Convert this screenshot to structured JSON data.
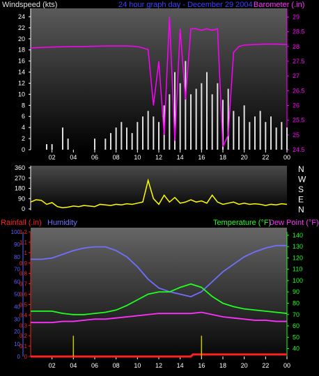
{
  "colors": {
    "windspeed": "#e0e0e0",
    "gust": "#ffffff",
    "wind_avg": "#30ff30",
    "barometer": "#ff00ff",
    "direction": "#ffff00",
    "rainfall": "#ff2020",
    "humidity": "#7070ff",
    "temperature": "#20ff20",
    "dewpoint": "#ff30ff",
    "axis_left": "#ffffff",
    "axis_humidity": "#6060ff",
    "axis_green": "#20ff20"
  },
  "labels": {
    "windspeed": "Windspeed (kts)",
    "graph_title": "24 hour graph day - December 29 2004",
    "barometer": "Barometer (.in)",
    "rainfall": "Rainfall (.in)",
    "humidity": "Humidity",
    "temperature": "Temperature (°F)",
    "dewpoint": "Dew Point (°F)"
  },
  "chart_data": [
    {
      "type": "line",
      "title": "24 hour graph day - December 29 2004",
      "xlabel": "",
      "x_ticks": [
        "02",
        "04",
        "06",
        "08",
        "10",
        "12",
        "14",
        "16",
        "18",
        "20",
        "22",
        "00"
      ],
      "left_axis": {
        "label": "Windspeed (kts)",
        "ticks": [
          "0",
          "2",
          "4",
          "6",
          "8",
          "10",
          "12",
          "14",
          "16",
          "18",
          "20",
          "22",
          "24"
        ],
        "range": [
          0,
          25
        ]
      },
      "right_axis": {
        "label": "Barometer (.in)",
        "ticks": [
          "24.5",
          "25",
          "25.5",
          "26",
          "26.5",
          "27",
          "27.5",
          "28",
          "28.5",
          "29"
        ],
        "range": [
          24.5,
          29.2
        ]
      },
      "series": [
        {
          "name": "Windspeed (kts)",
          "axis": "left",
          "style": "bars",
          "x": [
            0,
            0.5,
            1,
            1.5,
            2,
            2.5,
            3,
            3.5,
            4,
            4.5,
            5,
            5.5,
            6,
            6.5,
            7,
            7.5,
            8,
            8.5,
            9,
            9.5,
            10,
            10.5,
            11,
            11.5,
            12,
            12.5,
            13,
            13.5,
            14,
            14.5,
            15,
            15.5,
            16,
            16.5,
            17,
            17.5,
            18,
            18.5,
            19,
            19.5,
            20,
            20.5,
            21,
            21.5,
            22,
            22.5,
            23,
            23.5,
            24
          ],
          "values": [
            0,
            0,
            0,
            1,
            1,
            0,
            4,
            2,
            0,
            0,
            0,
            0,
            2,
            0,
            2,
            3,
            4,
            5,
            4,
            3,
            5,
            6,
            7,
            6,
            5,
            8,
            10,
            14,
            12,
            16,
            10,
            11,
            12,
            14,
            10,
            12,
            9,
            11,
            7,
            6,
            8,
            5,
            6,
            7,
            5,
            6,
            4,
            5,
            4
          ]
        },
        {
          "name": "Barometer (.in)",
          "axis": "right",
          "x": [
            0,
            1,
            2,
            3,
            4,
            5,
            6,
            7,
            8,
            9,
            10,
            11,
            11.5,
            12,
            12.5,
            13,
            13.5,
            14,
            14.5,
            15,
            15.5,
            16,
            16.5,
            17,
            17.5,
            18,
            18.5,
            19,
            19.5,
            20,
            21,
            22,
            23,
            24
          ],
          "values": [
            27.95,
            27.97,
            27.98,
            27.99,
            28.0,
            28.0,
            28.01,
            28.02,
            28.02,
            28.02,
            28.0,
            27.9,
            26.0,
            27.5,
            25.0,
            29.0,
            24.8,
            28.6,
            26.2,
            28.6,
            28.6,
            28.55,
            28.6,
            28.55,
            28.6,
            24.6,
            25.0,
            27.8,
            28.0,
            28.05,
            28.07,
            28.08,
            28.08,
            28.07
          ]
        }
      ]
    },
    {
      "type": "line",
      "title": "",
      "left_axis": {
        "label": "",
        "ticks": [
          "0",
          "90",
          "180",
          "270",
          "360"
        ],
        "range": [
          0,
          360
        ]
      },
      "right_axis": {
        "label": "",
        "ticks": [
          "N",
          "W",
          "S",
          "E",
          "N"
        ]
      },
      "series": [
        {
          "name": "Wind direction",
          "axis": "left",
          "x": [
            0,
            0.5,
            1,
            1.5,
            2,
            2.5,
            3,
            3.5,
            4,
            4.5,
            5,
            5.5,
            6,
            6.5,
            7,
            7.5,
            8,
            8.5,
            9,
            9.5,
            10,
            10.5,
            11,
            11.5,
            12,
            12.5,
            13,
            13.5,
            14,
            14.5,
            15,
            15.5,
            16,
            16.5,
            17,
            17.5,
            18,
            18.5,
            19,
            19.5,
            20,
            20.5,
            21,
            21.5,
            22,
            22.5,
            23,
            23.5,
            24
          ],
          "values": [
            60,
            80,
            75,
            40,
            55,
            20,
            10,
            15,
            25,
            20,
            30,
            25,
            20,
            40,
            35,
            30,
            40,
            35,
            45,
            40,
            50,
            60,
            250,
            90,
            40,
            120,
            60,
            100,
            50,
            60,
            80,
            60,
            70,
            50,
            120,
            60,
            40,
            50,
            60,
            40,
            50,
            40,
            45,
            40,
            30,
            40,
            35,
            45,
            40
          ]
        }
      ]
    },
    {
      "type": "line",
      "title": "",
      "x_ticks": [
        "02",
        "04",
        "06",
        "08",
        "10",
        "12",
        "14",
        "16",
        "18",
        "20",
        "22",
        "00"
      ],
      "rain_axis": {
        "label": "Rainfall (.in)",
        "ticks": [
          "0",
          "0.1",
          "0.2",
          "0.3",
          "0.4",
          "0.5",
          "0.6",
          "0.7",
          "0.8",
          "0.9",
          "1",
          "1.1",
          "1.2"
        ],
        "range": [
          0,
          1.2
        ]
      },
      "humidity_axis": {
        "label": "Humidity",
        "ticks": [
          "0",
          "10",
          "20",
          "30",
          "40",
          "50",
          "60",
          "70",
          "80",
          "90",
          "100"
        ],
        "range": [
          0,
          100
        ]
      },
      "temp_axis": {
        "label": "Temperature (°F)",
        "ticks": [
          "40",
          "50",
          "60",
          "70",
          "80",
          "90",
          "100",
          "110",
          "120",
          "130",
          "140"
        ],
        "range": [
          33,
          143
        ]
      },
      "series": [
        {
          "name": "Rainfall (.in)",
          "axis": "rain",
          "x": [
            0,
            4,
            8,
            12,
            15,
            15.2,
            16,
            20,
            24
          ],
          "values": [
            0,
            0,
            0,
            0,
            0,
            0.02,
            0.02,
            0.02,
            0.02
          ]
        },
        {
          "name": "Humidity",
          "axis": "humidity",
          "x": [
            0,
            1,
            2,
            3,
            4,
            5,
            6,
            7,
            8,
            9,
            10,
            11,
            12,
            13,
            14,
            15,
            16,
            17,
            18,
            19,
            20,
            21,
            22,
            23,
            24
          ],
          "values": [
            78,
            78,
            79,
            82,
            85,
            87,
            88,
            88,
            85,
            80,
            72,
            62,
            55,
            52,
            50,
            48,
            52,
            60,
            68,
            74,
            80,
            84,
            87,
            89,
            89
          ]
        },
        {
          "name": "Temperature (°F)",
          "axis": "temp",
          "x": [
            0,
            1,
            2,
            3,
            4,
            5,
            6,
            7,
            8,
            9,
            10,
            11,
            12,
            13,
            14,
            15,
            16,
            17,
            18,
            19,
            20,
            21,
            22,
            23,
            24
          ],
          "values": [
            73,
            73,
            73,
            71,
            70,
            70,
            71,
            72,
            74,
            78,
            83,
            88,
            90,
            90,
            94,
            97,
            94,
            86,
            80,
            77,
            75,
            74,
            73,
            72,
            71
          ]
        },
        {
          "name": "Dew Point (°F)",
          "axis": "temp",
          "x": [
            0,
            1,
            2,
            3,
            4,
            5,
            6,
            7,
            8,
            9,
            10,
            11,
            12,
            13,
            14,
            15,
            16,
            17,
            18,
            19,
            20,
            21,
            22,
            23,
            24
          ],
          "values": [
            63,
            63,
            63,
            64,
            64,
            65,
            66,
            66,
            67,
            68,
            69,
            70,
            71,
            71,
            71,
            71,
            72,
            70,
            68,
            67,
            66,
            65,
            65,
            64,
            64
          ]
        },
        {
          "name": "Rain rate markers",
          "axis": "rain",
          "x": [
            4,
            16
          ],
          "values": [
            0.2,
            0.2
          ]
        }
      ]
    }
  ]
}
